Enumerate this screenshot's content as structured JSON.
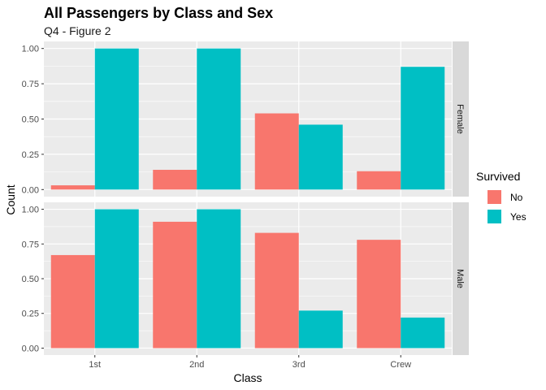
{
  "chart_data": {
    "type": "bar",
    "title": "All Passengers by Class and Sex",
    "subtitle": "Q4 - Figure 2",
    "xlabel": "Class",
    "ylabel": "Count",
    "categories": [
      "1st",
      "2nd",
      "3rd",
      "Crew"
    ],
    "ylim": [
      0,
      1
    ],
    "yticks": [
      "0.00",
      "0.25",
      "0.50",
      "0.75",
      "1.00"
    ],
    "legend": {
      "title": "Survived",
      "placement": "right",
      "items": [
        {
          "label": "No",
          "color": "#F8766D"
        },
        {
          "label": "Yes",
          "color": "#00BFC4"
        }
      ]
    },
    "panels": [
      {
        "facet": "Female",
        "series": [
          {
            "name": "No",
            "values": [
              0.03,
              0.14,
              0.54,
              0.13
            ]
          },
          {
            "name": "Yes",
            "values": [
              1.0,
              1.0,
              0.46,
              0.87
            ]
          }
        ]
      },
      {
        "facet": "Male",
        "series": [
          {
            "name": "No",
            "values": [
              0.67,
              0.91,
              0.83,
              0.78
            ]
          },
          {
            "name": "Yes",
            "values": [
              1.0,
              1.0,
              0.27,
              0.22
            ]
          }
        ]
      }
    ],
    "grid": true
  }
}
